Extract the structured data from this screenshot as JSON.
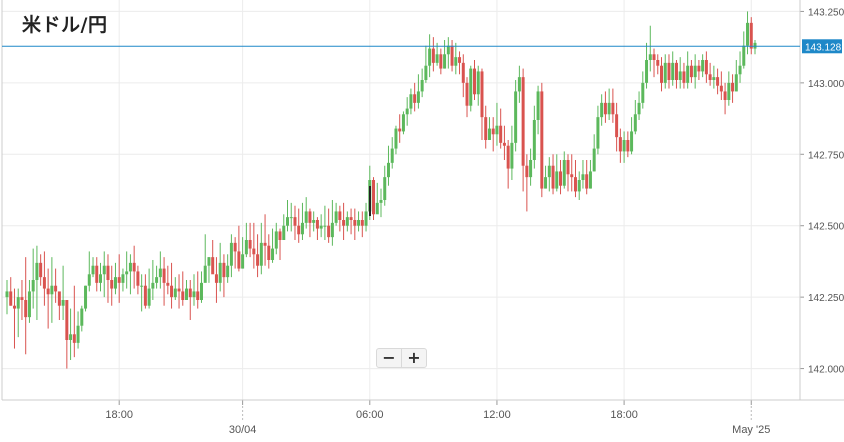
{
  "title": "米ドル/円",
  "zoom": {
    "out_label": "−",
    "in_label": "+"
  },
  "colors": {
    "up": "#5cb85c",
    "down": "#d9534f",
    "price_line": "#1e88c8",
    "grid": "#ececec"
  },
  "chart_data": {
    "type": "candlestick",
    "ylim": [
      141.89,
      143.29
    ],
    "yticks": [
      "142.000",
      "142.250",
      "142.500",
      "142.750",
      "143.000",
      "143.250"
    ],
    "xticks": [
      {
        "i": 30,
        "label": "18:00"
      },
      {
        "i": 63,
        "label": "30/04",
        "separator": true
      },
      {
        "i": 97,
        "label": "06:00"
      },
      {
        "i": 131,
        "label": "12:00"
      },
      {
        "i": 165,
        "label": "18:00"
      },
      {
        "i": 199,
        "label": "May '25",
        "separator": true
      }
    ],
    "current_price": "143.128",
    "current_value": 143.128,
    "candles": [
      [
        142.25,
        142.27,
        142.31,
        142.19
      ],
      [
        142.27,
        142.22,
        142.32,
        142.22
      ],
      [
        142.22,
        142.21,
        142.28,
        142.07
      ],
      [
        142.21,
        142.25,
        142.28,
        142.11
      ],
      [
        142.25,
        142.24,
        142.31,
        142.17
      ],
      [
        142.24,
        142.18,
        142.39,
        142.05
      ],
      [
        142.18,
        142.27,
        142.31,
        142.16
      ],
      [
        142.27,
        142.31,
        142.42,
        142.21
      ],
      [
        142.31,
        142.37,
        142.43,
        142.17
      ],
      [
        142.37,
        142.32,
        142.4,
        142.29
      ],
      [
        142.32,
        142.28,
        142.41,
        142.22
      ],
      [
        142.28,
        142.26,
        142.35,
        142.14
      ],
      [
        142.26,
        142.29,
        142.39,
        142.16
      ],
      [
        142.29,
        142.27,
        142.35,
        142.23
      ],
      [
        142.27,
        142.22,
        142.26,
        142.17
      ],
      [
        142.22,
        142.24,
        142.36,
        142.17
      ],
      [
        142.24,
        142.1,
        142.2,
        142.0
      ],
      [
        142.1,
        142.12,
        142.21,
        142.03
      ],
      [
        142.12,
        142.09,
        142.29,
        142.04
      ],
      [
        142.09,
        142.15,
        142.2,
        142.07
      ],
      [
        142.15,
        142.21,
        142.22,
        142.13
      ],
      [
        142.21,
        142.29,
        142.29,
        142.2
      ],
      [
        142.29,
        142.33,
        142.41,
        142.27
      ],
      [
        142.33,
        142.36,
        142.39,
        142.32
      ],
      [
        142.36,
        142.3,
        142.39,
        142.27
      ],
      [
        142.3,
        142.33,
        142.37,
        142.27
      ],
      [
        142.33,
        142.36,
        142.41,
        142.25
      ],
      [
        142.36,
        142.31,
        142.4,
        142.23
      ],
      [
        142.31,
        142.28,
        142.36,
        142.22
      ],
      [
        142.28,
        142.32,
        142.37,
        142.26
      ],
      [
        142.32,
        142.3,
        142.4,
        142.23
      ],
      [
        142.3,
        142.33,
        142.35,
        142.27
      ],
      [
        142.33,
        142.34,
        142.41,
        142.28
      ],
      [
        142.34,
        142.37,
        142.4,
        142.26
      ],
      [
        142.37,
        142.34,
        142.43,
        142.28
      ],
      [
        142.34,
        142.29,
        142.36,
        142.26
      ],
      [
        142.29,
        142.29,
        142.33,
        142.2
      ],
      [
        142.29,
        142.22,
        142.33,
        142.21
      ],
      [
        142.22,
        142.28,
        142.35,
        142.21
      ],
      [
        142.28,
        142.3,
        142.38,
        142.24
      ],
      [
        142.3,
        142.32,
        142.36,
        142.28
      ],
      [
        142.32,
        142.35,
        142.41,
        142.28
      ],
      [
        142.35,
        142.3,
        142.39,
        142.22
      ],
      [
        142.3,
        142.29,
        142.36,
        142.26
      ],
      [
        142.29,
        142.25,
        142.37,
        142.21
      ],
      [
        142.25,
        142.28,
        142.32,
        142.24
      ],
      [
        142.28,
        142.27,
        142.33,
        142.21
      ],
      [
        142.27,
        142.24,
        142.34,
        142.22
      ],
      [
        142.24,
        142.28,
        142.31,
        142.24
      ],
      [
        142.28,
        142.25,
        142.31,
        142.17
      ],
      [
        142.25,
        142.27,
        142.33,
        142.22
      ],
      [
        142.27,
        142.24,
        142.34,
        142.21
      ],
      [
        142.24,
        142.3,
        142.34,
        142.23
      ],
      [
        142.3,
        142.36,
        142.47,
        142.31
      ],
      [
        142.36,
        142.39,
        142.39,
        142.3
      ],
      [
        142.39,
        142.33,
        142.45,
        142.34
      ],
      [
        142.33,
        142.3,
        142.39,
        142.23
      ],
      [
        142.3,
        142.37,
        142.44,
        142.27
      ],
      [
        142.37,
        142.32,
        142.4,
        142.25
      ],
      [
        142.32,
        142.36,
        142.4,
        142.3
      ],
      [
        142.36,
        142.44,
        142.47,
        142.32
      ],
      [
        142.44,
        142.41,
        142.46,
        142.35
      ],
      [
        142.41,
        142.35,
        142.5,
        142.34
      ],
      [
        142.35,
        142.4,
        142.46,
        142.35
      ],
      [
        142.4,
        142.45,
        142.51,
        142.39
      ],
      [
        142.45,
        142.42,
        142.51,
        142.39
      ],
      [
        142.42,
        142.4,
        142.51,
        142.35
      ],
      [
        142.4,
        142.36,
        142.47,
        142.32
      ],
      [
        142.36,
        142.44,
        142.51,
        142.33
      ],
      [
        142.44,
        142.43,
        142.54,
        142.36
      ],
      [
        142.43,
        142.38,
        142.47,
        142.35
      ],
      [
        142.38,
        142.42,
        142.49,
        142.37
      ],
      [
        142.42,
        142.48,
        142.51,
        142.4
      ],
      [
        142.48,
        142.45,
        142.49,
        142.38
      ],
      [
        142.45,
        142.5,
        142.54,
        142.45
      ],
      [
        142.5,
        142.53,
        142.59,
        142.48
      ],
      [
        142.53,
        142.53,
        142.58,
        142.48
      ],
      [
        142.53,
        142.5,
        142.57,
        142.45
      ],
      [
        142.5,
        142.47,
        142.56,
        142.44
      ],
      [
        142.47,
        142.51,
        142.58,
        142.45
      ],
      [
        142.51,
        142.55,
        142.6,
        142.49
      ],
      [
        142.55,
        142.51,
        142.56,
        142.46
      ],
      [
        142.51,
        142.52,
        142.55,
        142.48
      ],
      [
        142.52,
        142.49,
        142.53,
        142.45
      ],
      [
        142.49,
        142.5,
        142.54,
        142.46
      ],
      [
        142.5,
        142.5,
        142.57,
        142.45
      ],
      [
        142.5,
        142.46,
        142.56,
        142.44
      ],
      [
        142.46,
        142.51,
        142.59,
        142.43
      ],
      [
        142.51,
        142.55,
        142.58,
        142.5
      ],
      [
        142.55,
        142.52,
        142.57,
        142.48
      ],
      [
        142.52,
        142.5,
        142.58,
        142.45
      ],
      [
        142.5,
        142.53,
        142.55,
        142.48
      ],
      [
        142.53,
        142.52,
        142.56,
        142.47
      ],
      [
        142.52,
        142.5,
        142.56,
        142.45
      ],
      [
        142.5,
        142.52,
        142.55,
        142.48
      ],
      [
        142.52,
        142.5,
        142.55,
        142.46
      ],
      [
        142.5,
        142.55,
        142.58,
        142.48
      ],
      [
        142.55,
        142.66,
        142.71,
        142.52
      ],
      [
        142.66,
        142.54,
        142.67,
        142.52
      ],
      [
        142.54,
        142.58,
        142.65,
        142.55
      ],
      [
        142.58,
        142.59,
        142.63,
        142.53
      ],
      [
        142.59,
        142.67,
        142.71,
        142.57
      ],
      [
        142.67,
        142.72,
        142.78,
        142.64
      ],
      [
        142.72,
        142.77,
        142.81,
        142.7
      ],
      [
        142.77,
        142.84,
        142.85,
        142.75
      ],
      [
        142.84,
        142.83,
        142.89,
        142.79
      ],
      [
        142.83,
        142.89,
        142.9,
        142.82
      ],
      [
        142.89,
        142.91,
        142.95,
        142.85
      ],
      [
        142.91,
        142.96,
        142.98,
        142.89
      ],
      [
        142.96,
        142.93,
        143.0,
        142.9
      ],
      [
        142.93,
        142.97,
        143.03,
        142.91
      ],
      [
        142.97,
        143.01,
        143.05,
        142.95
      ],
      [
        143.01,
        143.06,
        143.13,
        143.0
      ],
      [
        143.06,
        143.12,
        143.17,
        143.02
      ],
      [
        143.12,
        143.07,
        143.16,
        143.04
      ],
      [
        143.07,
        143.1,
        143.14,
        143.06
      ],
      [
        143.1,
        143.05,
        143.12,
        143.03
      ],
      [
        143.05,
        143.1,
        143.15,
        143.05
      ],
      [
        143.1,
        143.13,
        143.16,
        143.05
      ],
      [
        143.13,
        143.06,
        143.15,
        143.04
      ],
      [
        143.06,
        143.09,
        143.14,
        143.03
      ],
      [
        143.09,
        143.07,
        143.11,
        143.03
      ],
      [
        143.07,
        143.0,
        143.1,
        142.95
      ],
      [
        143.0,
        142.92,
        143.02,
        142.88
      ],
      [
        142.92,
        143.05,
        143.06,
        142.9
      ],
      [
        143.05,
        142.96,
        143.08,
        142.94
      ],
      [
        142.96,
        143.04,
        143.06,
        142.92
      ],
      [
        143.04,
        142.88,
        143.05,
        142.8
      ],
      [
        142.88,
        142.8,
        142.92,
        142.77
      ],
      [
        142.8,
        142.84,
        142.88,
        142.8
      ],
      [
        142.84,
        142.82,
        142.88,
        142.76
      ],
      [
        142.82,
        142.85,
        142.93,
        142.78
      ],
      [
        142.85,
        142.79,
        142.91,
        142.77
      ],
      [
        142.79,
        142.78,
        142.85,
        142.73
      ],
      [
        142.78,
        142.7,
        142.8,
        142.63
      ],
      [
        142.7,
        142.79,
        142.85,
        142.66
      ],
      [
        142.79,
        142.97,
        143.01,
        142.76
      ],
      [
        142.97,
        143.02,
        143.06,
        142.93
      ],
      [
        143.02,
        142.71,
        143.05,
        142.62
      ],
      [
        142.71,
        142.67,
        142.75,
        142.55
      ],
      [
        142.67,
        142.73,
        142.77,
        142.64
      ],
      [
        142.73,
        142.87,
        142.92,
        142.7
      ],
      [
        142.87,
        142.97,
        142.99,
        142.82
      ],
      [
        142.97,
        142.63,
        143.0,
        142.6
      ],
      [
        142.63,
        142.67,
        142.71,
        142.63
      ],
      [
        142.67,
        142.71,
        142.74,
        142.62
      ],
      [
        142.71,
        142.63,
        142.75,
        142.61
      ],
      [
        142.63,
        142.69,
        142.75,
        142.62
      ],
      [
        142.69,
        142.64,
        142.73,
        142.61
      ],
      [
        142.64,
        142.73,
        142.76,
        142.63
      ],
      [
        142.73,
        142.68,
        142.75,
        142.62
      ],
      [
        142.68,
        142.67,
        142.75,
        142.62
      ],
      [
        142.67,
        142.62,
        142.73,
        142.6
      ],
      [
        142.62,
        142.66,
        142.69,
        142.59
      ],
      [
        142.66,
        142.68,
        142.73,
        142.63
      ],
      [
        142.68,
        142.63,
        142.73,
        142.61
      ],
      [
        142.63,
        142.69,
        142.73,
        142.63
      ],
      [
        142.69,
        142.77,
        142.82,
        142.69
      ],
      [
        142.77,
        142.88,
        142.92,
        142.75
      ],
      [
        142.88,
        142.93,
        142.96,
        142.85
      ],
      [
        142.93,
        142.89,
        142.97,
        142.86
      ],
      [
        142.89,
        142.93,
        142.98,
        142.87
      ],
      [
        142.93,
        142.89,
        142.98,
        142.86
      ],
      [
        142.89,
        142.81,
        142.93,
        142.76
      ],
      [
        142.81,
        142.76,
        142.84,
        142.72
      ],
      [
        142.76,
        142.8,
        142.83,
        142.72
      ],
      [
        142.8,
        142.76,
        142.83,
        142.74
      ],
      [
        142.76,
        142.83,
        142.88,
        142.75
      ],
      [
        142.83,
        142.89,
        142.94,
        142.82
      ],
      [
        142.89,
        142.93,
        142.97,
        142.87
      ],
      [
        142.93,
        143.0,
        143.04,
        142.91
      ],
      [
        143.0,
        143.08,
        143.14,
        142.98
      ],
      [
        143.08,
        143.1,
        143.2,
        143.04
      ],
      [
        143.1,
        143.08,
        143.12,
        143.02
      ],
      [
        143.08,
        143.06,
        143.1,
        143.03
      ],
      [
        143.06,
        143.0,
        143.09,
        142.97
      ],
      [
        143.0,
        143.07,
        143.1,
        142.98
      ],
      [
        143.07,
        143.01,
        143.1,
        142.98
      ],
      [
        143.01,
        143.07,
        143.11,
        142.99
      ],
      [
        143.07,
        143.01,
        143.08,
        142.98
      ],
      [
        143.01,
        143.04,
        143.09,
        142.98
      ],
      [
        143.04,
        143.0,
        143.07,
        142.98
      ],
      [
        143.0,
        143.06,
        143.11,
        142.98
      ],
      [
        143.06,
        143.02,
        143.08,
        143.0
      ],
      [
        143.02,
        143.06,
        143.1,
        142.98
      ],
      [
        143.06,
        143.04,
        143.08,
        143.01
      ],
      [
        143.04,
        143.08,
        143.1,
        143.02
      ],
      [
        143.08,
        143.03,
        143.11,
        143.0
      ],
      [
        143.03,
        143.01,
        143.07,
        142.99
      ],
      [
        143.01,
        143.02,
        143.06,
        142.98
      ],
      [
        143.02,
        142.99,
        143.05,
        142.96
      ],
      [
        142.99,
        142.97,
        143.04,
        142.94
      ],
      [
        142.97,
        142.94,
        143.0,
        142.89
      ],
      [
        142.94,
        143.0,
        143.04,
        142.92
      ],
      [
        143.0,
        142.97,
        143.03,
        142.93
      ],
      [
        142.97,
        143.03,
        143.08,
        142.97
      ],
      [
        143.03,
        143.06,
        143.11,
        143.0
      ],
      [
        143.06,
        143.13,
        143.18,
        143.05
      ],
      [
        143.13,
        143.21,
        143.25,
        143.1
      ],
      [
        143.21,
        143.12,
        143.23,
        143.1
      ],
      [
        143.12,
        143.14,
        143.15,
        143.1
      ]
    ]
  }
}
